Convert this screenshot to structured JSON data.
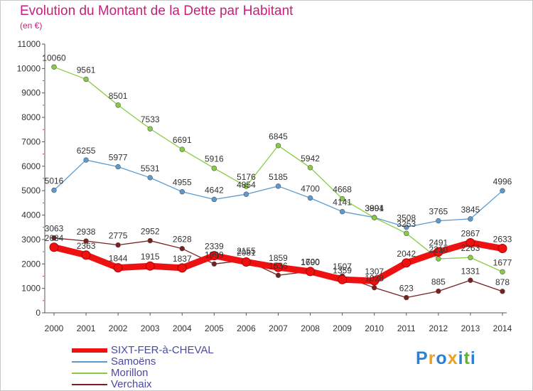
{
  "title": "Evolution du Montant de la Dette par Habitant",
  "subtitle": "(en €)",
  "logo": {
    "text": "Proxiti",
    "colors": [
      "#2b7fd4",
      "#f0a020",
      "#2b7fd4",
      "#f0a020",
      "#2b7fd4",
      "#5cb82a",
      "#2b7fd4"
    ]
  },
  "chart_data": {
    "type": "line",
    "x": [
      "2000",
      "2001",
      "2002",
      "2003",
      "2004",
      "2005",
      "2006",
      "2007",
      "2008",
      "2009",
      "2010",
      "2011",
      "2012",
      "2013",
      "2014"
    ],
    "ylim": [
      0,
      11000
    ],
    "yticks": [
      0,
      1000,
      2000,
      3000,
      4000,
      5000,
      6000,
      7000,
      8000,
      9000,
      10000,
      11000
    ],
    "grid": false,
    "legend_position": "bottom-left",
    "series": [
      {
        "name": "Verchaix",
        "color": "#7a1f1f",
        "values": [
          3063,
          2938,
          2775,
          2952,
          2628,
          1999,
          2155,
          1536,
          1700,
          1507,
          1028,
          623,
          885,
          1331,
          878
        ]
      },
      {
        "name": "Samoëns",
        "color": "#5b9bd0",
        "values": [
          5016,
          6255,
          5977,
          5531,
          4955,
          4642,
          4854,
          5185,
          4700,
          4141,
          3901,
          3508,
          3765,
          3845,
          4996
        ]
      },
      {
        "name": "Morillon",
        "color": "#88cc44",
        "values": [
          10060,
          9561,
          8501,
          7533,
          6691,
          5916,
          5176,
          6845,
          5942,
          4668,
          3894,
          3253,
          2210,
          2263,
          1677
        ]
      },
      {
        "name": "SIXT-FER-à-CHEVAL",
        "color": "#ee1111",
        "values": [
          2684,
          2363,
          1844,
          1915,
          1837,
          2339,
          2081,
          1859,
          1690,
          1359,
          1307,
          2042,
          2491,
          2867,
          2633
        ]
      }
    ]
  },
  "legend": [
    {
      "label": "SIXT-FER-à-CHEVAL",
      "color": "#ee1111"
    },
    {
      "label": "Samoëns",
      "color": "#5b9bd0"
    },
    {
      "label": "Morillon",
      "color": "#88cc44"
    },
    {
      "label": "Verchaix",
      "color": "#7a1f1f"
    }
  ]
}
